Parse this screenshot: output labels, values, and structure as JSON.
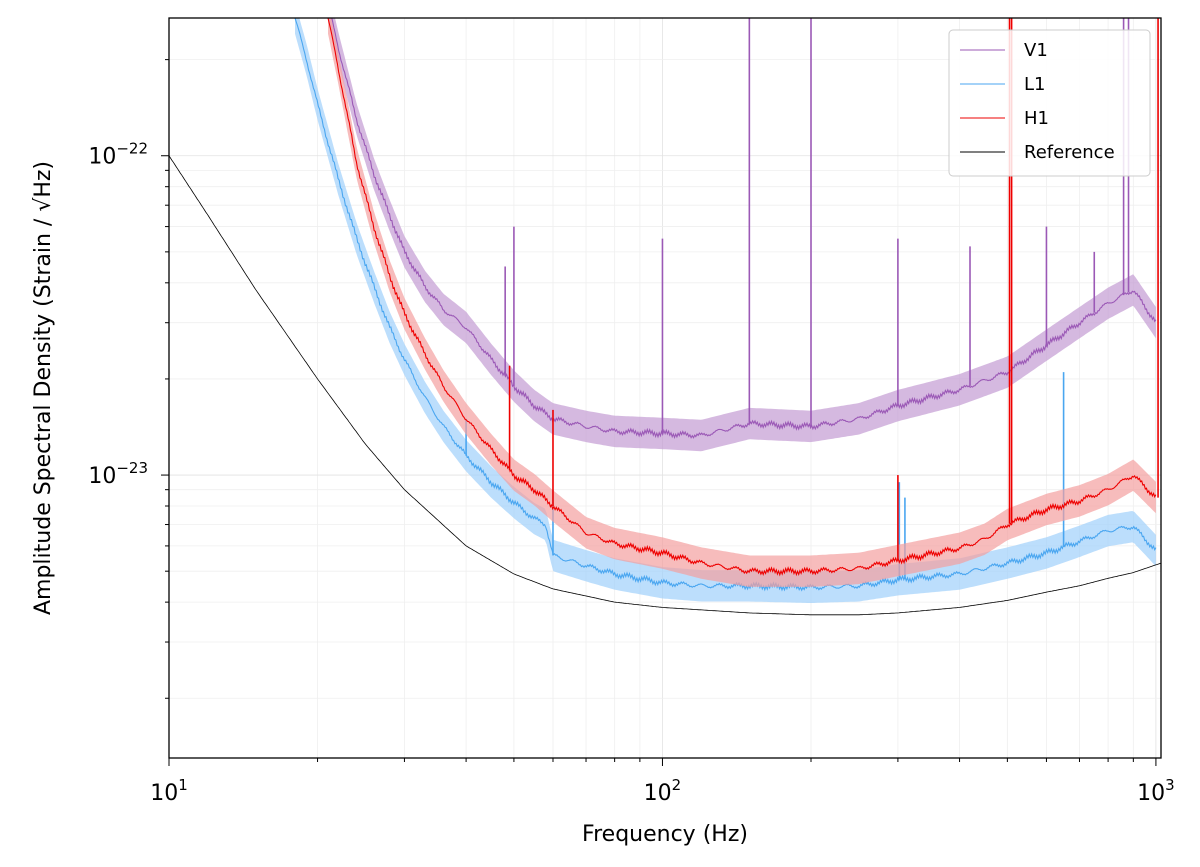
{
  "chart_data": {
    "type": "line",
    "xlabel": "Frequency (Hz)",
    "ylabel": "Amplitude Spectral Density (Strain / √Hz)",
    "xscale": "log",
    "yscale": "log",
    "xlim": [
      10,
      1024
    ],
    "ylim": [
      1.3e-24,
      2.7e-22
    ],
    "grid": true,
    "legend_position": "top-right",
    "x_ticks": [
      {
        "value": 10,
        "base": "10",
        "exp": "1"
      },
      {
        "value": 100,
        "base": "10",
        "exp": "2"
      },
      {
        "value": 1000,
        "base": "10",
        "exp": "3"
      }
    ],
    "y_ticks": [
      {
        "value": 1e-23,
        "base": "10",
        "exp": "−23"
      },
      {
        "value": 1e-22,
        "base": "10",
        "exp": "−22"
      }
    ],
    "series": [
      {
        "name": "V1",
        "color": "#9b59b6",
        "band_color": "#c39bd3",
        "x": [
          21,
          22,
          24,
          26,
          28,
          30,
          33,
          36,
          40,
          45,
          50,
          55,
          60,
          70,
          80,
          100,
          120,
          150,
          200,
          250,
          300,
          400,
          500,
          600,
          700,
          800,
          900,
          1000
        ],
        "y": [
          3e-22,
          2.2e-22,
          1.3e-22,
          8.8e-23,
          6.5e-23,
          5e-23,
          3.9e-23,
          3.3e-23,
          2.9e-23,
          2.3e-23,
          1.9e-23,
          1.65e-23,
          1.5e-23,
          1.42e-23,
          1.37e-23,
          1.35e-23,
          1.33e-23,
          1.45e-23,
          1.42e-23,
          1.5e-23,
          1.65e-23,
          1.85e-23,
          2.1e-23,
          2.55e-23,
          3e-23,
          3.45e-23,
          3.8e-23,
          3e-23
        ],
        "peaks": [
          [
            150,
            2.7e-22
          ],
          [
            200,
            2.7e-22
          ],
          [
            100,
            5.5e-23
          ],
          [
            50,
            6e-23
          ],
          [
            48,
            4.5e-23
          ],
          [
            300,
            5.5e-23
          ],
          [
            420,
            5.2e-23
          ],
          [
            600,
            6e-23
          ],
          [
            750,
            5e-23
          ],
          [
            860,
            2.7e-22
          ],
          [
            880,
            2.7e-22
          ]
        ]
      },
      {
        "name": "L1",
        "color": "#4aa6f0",
        "band_color": "#9fd0fb",
        "x": [
          18,
          19,
          20,
          22,
          24,
          26,
          28,
          30,
          33,
          36,
          40,
          45,
          50,
          55,
          58,
          60,
          70,
          80,
          100,
          120,
          150,
          200,
          250,
          300,
          400,
          500,
          600,
          700,
          800,
          900,
          1000
        ],
        "y": [
          2.7e-22,
          2e-22,
          1.45e-22,
          8.5e-23,
          5.5e-23,
          3.9e-23,
          2.9e-23,
          2.3e-23,
          1.75e-23,
          1.42e-23,
          1.15e-23,
          9.5e-24,
          8.2e-24,
          7.3e-24,
          7e-24,
          5.6e-24,
          5.2e-24,
          4.9e-24,
          4.6e-24,
          4.5e-24,
          4.5e-24,
          4.45e-24,
          4.5e-24,
          4.7e-24,
          4.9e-24,
          5.3e-24,
          5.7e-24,
          6.2e-24,
          6.7e-24,
          6.9e-24,
          5.8e-24
        ],
        "peaks": [
          [
            302,
            9.5e-24
          ],
          [
            310,
            8.5e-24
          ],
          [
            40,
            1.5e-23
          ],
          [
            60,
            9e-24
          ],
          [
            650,
            2.1e-23
          ]
        ]
      },
      {
        "name": "H1",
        "color": "#ee0000",
        "band_color": "#f4a0a0",
        "x": [
          21,
          22,
          24,
          26,
          28,
          30,
          33,
          36,
          40,
          45,
          50,
          55,
          60,
          70,
          80,
          100,
          120,
          150,
          200,
          250,
          300,
          400,
          450,
          500,
          600,
          700,
          800,
          900,
          1000
        ],
        "y": [
          2.7e-22,
          1.9e-22,
          9.5e-23,
          6e-23,
          4.2e-23,
          3.2e-23,
          2.4e-23,
          1.9e-23,
          1.5e-23,
          1.2e-23,
          1e-23,
          9e-24,
          8e-24,
          6.6e-24,
          6.1e-24,
          5.7e-24,
          5.3e-24,
          5e-24,
          5e-24,
          5.1e-24,
          5.4e-24,
          5.9e-24,
          6.3e-24,
          7e-24,
          7.8e-24,
          8.3e-24,
          9e-24,
          1e-23,
          8.5e-24
        ],
        "peaks": [
          [
            49,
            2.2e-23
          ],
          [
            60,
            1.6e-23
          ],
          [
            300,
            1e-23
          ],
          [
            505,
            2.7e-22
          ],
          [
            510,
            2.7e-22
          ],
          [
            1010,
            2.7e-22
          ]
        ]
      },
      {
        "name": "Reference",
        "color": "#000000",
        "x": [
          10,
          12,
          15,
          20,
          25,
          30,
          40,
          50,
          60,
          80,
          100,
          150,
          200,
          250,
          300,
          400,
          500,
          600,
          700,
          800,
          900,
          1024
        ],
        "y": [
          1e-22,
          6.5e-23,
          3.8e-23,
          2e-23,
          1.25e-23,
          9e-24,
          6e-24,
          4.9e-24,
          4.4e-24,
          4e-24,
          3.85e-24,
          3.7e-24,
          3.65e-24,
          3.65e-24,
          3.7e-24,
          3.85e-24,
          4.05e-24,
          4.3e-24,
          4.5e-24,
          4.75e-24,
          4.95e-24,
          5.3e-24
        ]
      }
    ]
  }
}
